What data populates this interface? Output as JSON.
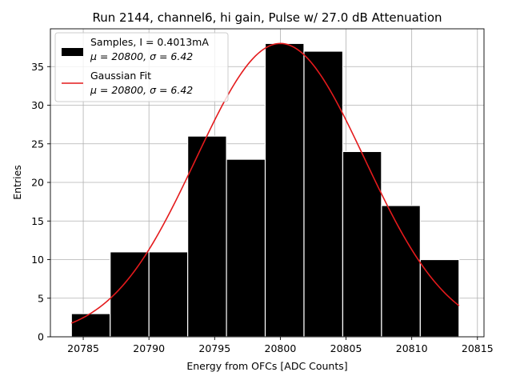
{
  "chart_data": {
    "type": "bar",
    "title": "Run 2144, channel6, hi gain, Pulse w/ 27.0 dB Attenuation",
    "xlabel": "Energy from OFCs [ADC Counts]",
    "ylabel": "Entries",
    "xlim": [
      20782.5,
      20815.5
    ],
    "ylim": [
      0,
      39.9
    ],
    "grid": true,
    "xticks": [
      20785,
      20790,
      20795,
      20800,
      20805,
      20810,
      20815
    ],
    "yticks": [
      0,
      5,
      10,
      15,
      20,
      25,
      30,
      35
    ],
    "xtick_labels": [
      "20785",
      "20790",
      "20795",
      "20800",
      "20805",
      "20810",
      "20815"
    ],
    "ytick_labels": [
      "0",
      "5",
      "10",
      "15",
      "20",
      "25",
      "30",
      "35"
    ],
    "bin_edges": [
      20784.1,
      20787.05,
      20790.0,
      20792.95,
      20795.9,
      20798.85,
      20801.8,
      20804.75,
      20807.7,
      20810.65,
      20813.6
    ],
    "values": [
      3,
      11,
      11,
      26,
      23,
      38,
      37,
      24,
      17,
      10
    ],
    "histogram_color": "#000000",
    "fit": {
      "type": "gaussian",
      "mu": 20800,
      "sigma": 6.42,
      "amplitude": 38,
      "x_range": [
        20784.1,
        20813.6
      ],
      "color": "#e41a1c"
    },
    "legend": {
      "position": "top-left",
      "entries": [
        {
          "line1": "Samples, I = 0.4013mA",
          "line2": "μ = 20800, σ = 6.42",
          "symbol": "patch",
          "color": "#000000"
        },
        {
          "line1": "Gaussian Fit",
          "line2": "μ = 20800, σ = 6.42",
          "symbol": "line",
          "color": "#e41a1c"
        }
      ]
    }
  }
}
